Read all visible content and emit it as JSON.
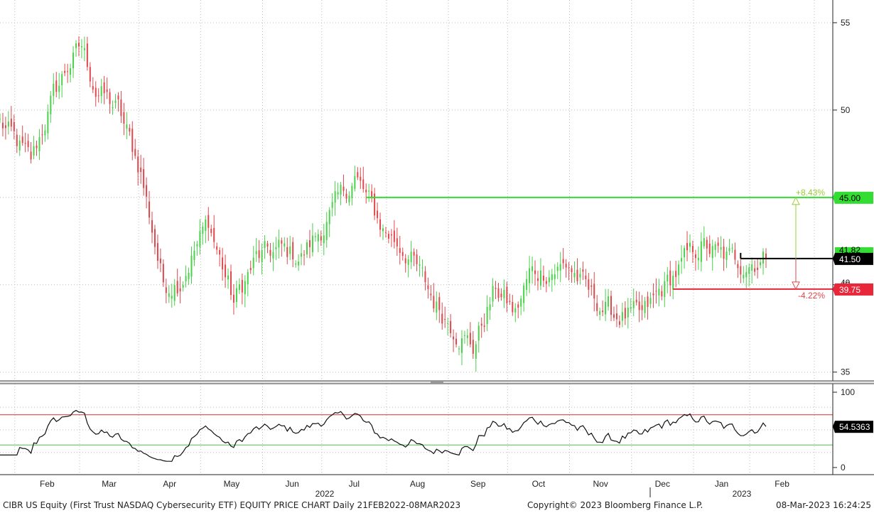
{
  "footer": {
    "left": "CIBR US Equity (First Trust NASDAQ Cybersecurity ETF) EQUITY PRICE CHART  Daily 21FEB2022-08MAR2023",
    "center": "Copyright© 2023 Bloomberg Finance L.P.",
    "right": "08-Mar-2023 16:24:25"
  },
  "colors": {
    "up": "#49d149",
    "down": "#e0474c",
    "resistance": "#33dd33",
    "support": "#e8283a",
    "current": "#000000",
    "gain_arrow": "#99cc33",
    "loss_arrow": "#e0474c",
    "grid": "#bbbbbb"
  },
  "chart_data": [
    {
      "type": "candlestick",
      "title": "",
      "y_ticks": [
        "55",
        "50",
        "45",
        "40",
        "35"
      ],
      "ylim": [
        34.5,
        56.3
      ],
      "x_months": [
        "Jan",
        "Feb",
        "Mar",
        "Apr",
        "May",
        "Jun",
        "Jul",
        "Aug",
        "Sep",
        "Oct",
        "Nov",
        "Dec",
        "Jan",
        "Feb",
        "Mar"
      ],
      "x_years": [
        "2022",
        "2023"
      ],
      "date_range": [
        "2022-02-21",
        "2023-03-08"
      ],
      "anchors": [
        {
          "date": "2022-02-21",
          "close": 49.3
        },
        {
          "date": "2022-03-08",
          "close": 47.0
        },
        {
          "date": "2022-03-18",
          "close": 50.8
        },
        {
          "date": "2022-03-25",
          "close": 52.5
        },
        {
          "date": "2022-04-01",
          "close": 53.6
        },
        {
          "date": "2022-04-08",
          "close": 51.2
        },
        {
          "date": "2022-04-20",
          "close": 50.0
        },
        {
          "date": "2022-05-02",
          "close": 46.5
        },
        {
          "date": "2022-05-12",
          "close": 40.0
        },
        {
          "date": "2022-05-20",
          "close": 40.3
        },
        {
          "date": "2022-06-03",
          "close": 43.6
        },
        {
          "date": "2022-06-16",
          "close": 39.0
        },
        {
          "date": "2022-06-28",
          "close": 41.5
        },
        {
          "date": "2022-07-08",
          "close": 42.0
        },
        {
          "date": "2022-07-20",
          "close": 41.6
        },
        {
          "date": "2022-08-01",
          "close": 43.4
        },
        {
          "date": "2022-08-16",
          "close": 46.2
        },
        {
          "date": "2022-08-30",
          "close": 43.2
        },
        {
          "date": "2022-09-12",
          "close": 41.8
        },
        {
          "date": "2022-09-26",
          "close": 38.8
        },
        {
          "date": "2022-10-13",
          "close": 36.4
        },
        {
          "date": "2022-10-25",
          "close": 39.8
        },
        {
          "date": "2022-11-03",
          "close": 38.3
        },
        {
          "date": "2022-11-10",
          "close": 40.6
        },
        {
          "date": "2022-11-30",
          "close": 41.1
        },
        {
          "date": "2022-12-12",
          "close": 39.3
        },
        {
          "date": "2022-12-22",
          "close": 38.3
        },
        {
          "date": "2023-01-05",
          "close": 38.1
        },
        {
          "date": "2023-01-13",
          "close": 39.5
        },
        {
          "date": "2023-01-27",
          "close": 41.5
        },
        {
          "date": "2023-02-03",
          "close": 42.3
        },
        {
          "date": "2023-02-14",
          "close": 41.6
        },
        {
          "date": "2023-02-24",
          "close": 41.3
        },
        {
          "date": "2023-03-08",
          "close": 41.5
        }
      ],
      "levels": [
        {
          "name": "resistance",
          "value": 45.0,
          "label": "45.00",
          "pct": "+8.43%"
        },
        {
          "name": "current",
          "value": 41.5,
          "label": "41.50"
        },
        {
          "name": "support",
          "value": 39.75,
          "label": "39.75",
          "pct": "-4.22%"
        }
      ],
      "hidden_tags": [
        "41.82",
        "40"
      ]
    },
    {
      "type": "line",
      "title": "",
      "y_ticks": [
        "100",
        "0"
      ],
      "ylim": [
        0,
        100
      ],
      "overbought": 70,
      "oversold": 30,
      "last_value": 54.5363,
      "last_label": "54.5363"
    }
  ]
}
